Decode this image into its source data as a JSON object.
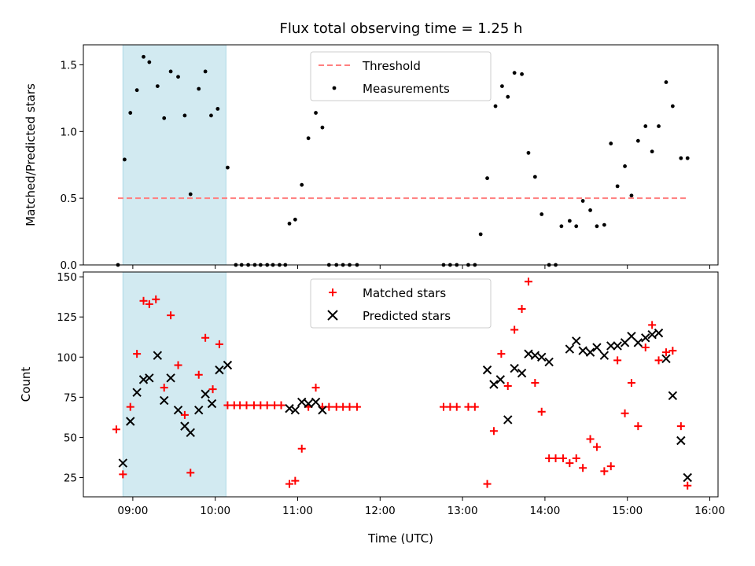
{
  "title": "Flux total observing time = 1.25 h",
  "colors": {
    "threshold": "#ff7f7f",
    "measurement": "#000000",
    "matched": "#ff0000",
    "predicted": "#000000",
    "shade": "#add8e6"
  },
  "chart_data": [
    {
      "type": "scatter",
      "ylabel": "Matched/Predicted stars",
      "xlabel": "",
      "xlim_hours": [
        8.4,
        16.1
      ],
      "ylim": [
        0,
        1.65
      ],
      "yticks": [
        0.0,
        0.5,
        1.0,
        1.5
      ],
      "ytick_labels": [
        "0.0",
        "0.5",
        "1.0",
        "1.5"
      ],
      "shaded_region_hours": [
        8.88,
        10.13
      ],
      "threshold": {
        "name": "Threshold",
        "value": 0.5,
        "x_hours": [
          8.82,
          15.73
        ]
      },
      "legend": {
        "position": "top-center",
        "entries": [
          "Threshold",
          "Measurements"
        ]
      },
      "series": [
        {
          "name": "Measurements",
          "x_hours": [
            8.82,
            8.9,
            8.97,
            9.05,
            9.13,
            9.2,
            9.3,
            9.38,
            9.46,
            9.55,
            9.63,
            9.7,
            9.8,
            9.88,
            9.95,
            10.03,
            10.15,
            10.25,
            10.32,
            10.4,
            10.48,
            10.55,
            10.63,
            10.7,
            10.78,
            10.85,
            10.9,
            10.97,
            11.05,
            11.13,
            11.22,
            11.3,
            11.38,
            11.47,
            11.55,
            11.63,
            11.72,
            12.77,
            12.85,
            12.93,
            13.07,
            13.15,
            13.22,
            13.3,
            13.4,
            13.48,
            13.55,
            13.63,
            13.72,
            13.8,
            13.88,
            13.96,
            14.05,
            14.13,
            14.2,
            14.3,
            14.38,
            14.46,
            14.55,
            14.63,
            14.72,
            14.8,
            14.88,
            14.97,
            15.05,
            15.13,
            15.22,
            15.3,
            15.38,
            15.47,
            15.55,
            15.65,
            15.73
          ],
          "y": [
            0.0,
            0.79,
            1.14,
            1.31,
            1.56,
            1.52,
            1.34,
            1.1,
            1.45,
            1.41,
            1.12,
            0.53,
            1.32,
            1.45,
            1.12,
            1.17,
            0.73,
            0.0,
            0.0,
            0.0,
            0.0,
            0.0,
            0.0,
            0.0,
            0.0,
            0.0,
            0.31,
            0.34,
            0.6,
            0.95,
            1.14,
            1.03,
            0.0,
            0.0,
            0.0,
            0.0,
            0.0,
            0.0,
            0.0,
            0.0,
            0.0,
            0.0,
            0.23,
            0.65,
            1.19,
            1.34,
            1.26,
            1.44,
            1.43,
            0.84,
            0.66,
            0.38,
            0.0,
            0.0,
            0.29,
            0.33,
            0.29,
            0.48,
            0.41,
            0.29,
            0.3,
            0.91,
            0.59,
            0.74,
            0.52,
            0.93,
            1.04,
            0.85,
            1.04,
            1.37,
            1.19,
            0.8,
            0.8
          ]
        }
      ]
    },
    {
      "type": "scatter",
      "ylabel": "Count",
      "xlabel": "Time (UTC)",
      "xlim_hours": [
        8.4,
        16.1
      ],
      "xticks_hours": [
        9,
        10,
        11,
        12,
        13,
        14,
        15,
        16
      ],
      "xtick_labels": [
        "09:00",
        "10:00",
        "11:00",
        "12:00",
        "13:00",
        "14:00",
        "15:00",
        "16:00"
      ],
      "ylim": [
        13,
        153
      ],
      "yticks": [
        25,
        50,
        75,
        100,
        125,
        150
      ],
      "ytick_labels": [
        "25",
        "50",
        "75",
        "100",
        "125",
        "150"
      ],
      "shaded_region_hours": [
        8.88,
        10.13
      ],
      "legend": {
        "position": "top-center",
        "entries": [
          "Matched stars",
          "Predicted stars"
        ]
      },
      "series": [
        {
          "name": "Matched stars",
          "marker": "+",
          "x_hours": [
            8.8,
            8.88,
            8.97,
            9.05,
            9.13,
            9.2,
            9.28,
            9.38,
            9.46,
            9.55,
            9.63,
            9.7,
            9.8,
            9.88,
            9.97,
            10.05,
            10.15,
            10.23,
            10.3,
            10.38,
            10.47,
            10.55,
            10.63,
            10.72,
            10.8,
            10.9,
            10.97,
            11.05,
            11.13,
            11.22,
            11.3,
            11.38,
            11.47,
            11.55,
            11.63,
            11.72,
            12.77,
            12.85,
            12.93,
            13.07,
            13.15,
            13.3,
            13.38,
            13.47,
            13.55,
            13.63,
            13.72,
            13.8,
            13.88,
            13.96,
            14.05,
            14.13,
            14.22,
            14.3,
            14.38,
            14.46,
            14.55,
            14.63,
            14.72,
            14.8,
            14.88,
            14.97,
            15.05,
            15.13,
            15.22,
            15.3,
            15.38,
            15.47,
            15.55,
            15.65,
            15.73
          ],
          "y": [
            55,
            27,
            69,
            102,
            135,
            133,
            136,
            81,
            126,
            95,
            64,
            28,
            89,
            112,
            80,
            108,
            70,
            70,
            70,
            70,
            70,
            70,
            70,
            70,
            70,
            21,
            23,
            43,
            69,
            81,
            69,
            69,
            69,
            69,
            69,
            69,
            69,
            69,
            69,
            69,
            69,
            21,
            54,
            102,
            82,
            117,
            130,
            147,
            84,
            66,
            37,
            37,
            37,
            34,
            37,
            31,
            49,
            44,
            29,
            32,
            98,
            65,
            84,
            57,
            106,
            120,
            98,
            103,
            104,
            57,
            20
          ]
        },
        {
          "name": "Predicted stars",
          "marker": "x",
          "x_hours": [
            8.88,
            8.97,
            9.05,
            9.13,
            9.2,
            9.3,
            9.38,
            9.46,
            9.55,
            9.63,
            9.7,
            9.8,
            9.88,
            9.96,
            10.05,
            10.15,
            10.9,
            10.97,
            11.05,
            11.13,
            11.22,
            11.3,
            13.3,
            13.38,
            13.46,
            13.55,
            13.63,
            13.72,
            13.8,
            13.88,
            13.96,
            14.05,
            14.3,
            14.38,
            14.46,
            14.55,
            14.63,
            14.72,
            14.8,
            14.88,
            14.97,
            15.05,
            15.13,
            15.22,
            15.3,
            15.38,
            15.47,
            15.55,
            15.65,
            15.73
          ],
          "y": [
            34,
            60,
            78,
            86,
            87,
            101,
            73,
            87,
            67,
            57,
            53,
            67,
            77,
            71,
            92,
            95,
            68,
            67,
            72,
            71,
            72,
            67,
            92,
            83,
            86,
            61,
            93,
            90,
            102,
            101,
            100,
            97,
            105,
            110,
            104,
            103,
            106,
            101,
            107,
            107,
            109,
            113,
            109,
            112,
            114,
            115,
            99,
            76,
            48,
            25
          ]
        }
      ]
    }
  ]
}
